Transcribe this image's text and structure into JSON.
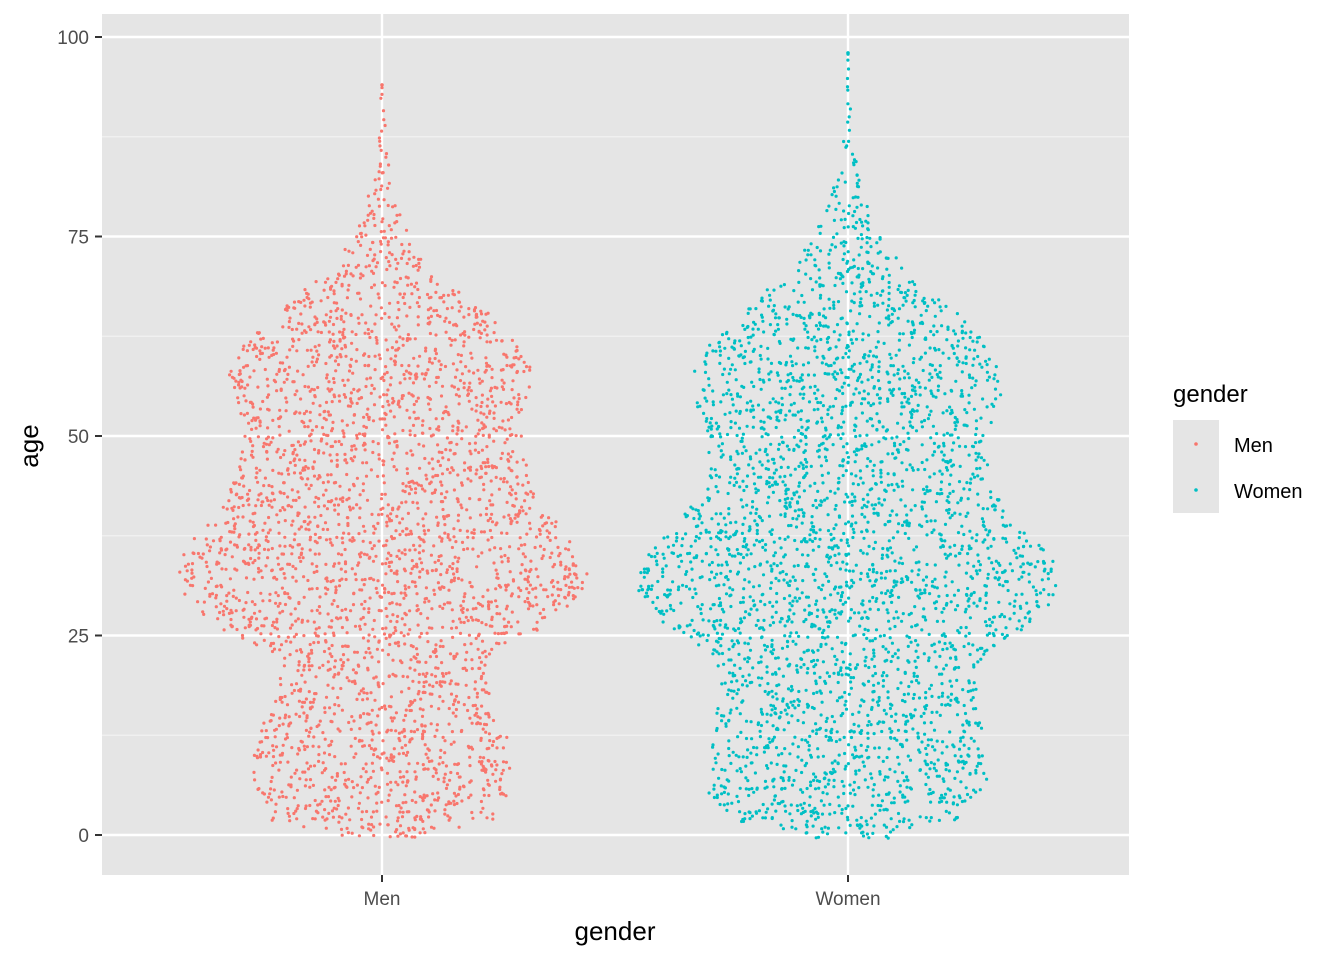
{
  "chart_data": {
    "type": "scatter",
    "subtype": "beeswarm",
    "title": "",
    "xlabel": "gender",
    "ylabel": "age",
    "categories": [
      "Men",
      "Women"
    ],
    "ylim": [
      -5,
      103
    ],
    "yticks": [
      0,
      25,
      50,
      75,
      100
    ],
    "ytick_labels": [
      "0",
      "25",
      "50",
      "75",
      "100"
    ],
    "grid": true,
    "background": "#e5e5e5",
    "legend": {
      "title": "gender",
      "position": "right",
      "entries": [
        {
          "label": "Men",
          "color": "#f8766d"
        },
        {
          "label": "Women",
          "color": "#00bfc4"
        }
      ]
    },
    "series": [
      {
        "name": "Men",
        "color": "#f8766d",
        "age_range": [
          0,
          94
        ],
        "half_width_by_age": [
          [
            0,
            0.11
          ],
          [
            2,
            0.24
          ],
          [
            5,
            0.27
          ],
          [
            8,
            0.28
          ],
          [
            12,
            0.27
          ],
          [
            16,
            0.24
          ],
          [
            20,
            0.22
          ],
          [
            23,
            0.25
          ],
          [
            26,
            0.34
          ],
          [
            30,
            0.43
          ],
          [
            33,
            0.44
          ],
          [
            36,
            0.42
          ],
          [
            40,
            0.36
          ],
          [
            44,
            0.32
          ],
          [
            48,
            0.3
          ],
          [
            52,
            0.3
          ],
          [
            55,
            0.32
          ],
          [
            58,
            0.33
          ],
          [
            61,
            0.3
          ],
          [
            65,
            0.24
          ],
          [
            70,
            0.12
          ],
          [
            75,
            0.06
          ],
          [
            80,
            0.03
          ],
          [
            85,
            0.015
          ],
          [
            90,
            0.005
          ],
          [
            94,
            0
          ]
        ]
      },
      {
        "name": "Women",
        "color": "#00bfc4",
        "age_range": [
          0,
          98
        ],
        "half_width_by_age": [
          [
            0,
            0.11
          ],
          [
            2,
            0.24
          ],
          [
            5,
            0.3
          ],
          [
            8,
            0.3
          ],
          [
            12,
            0.29
          ],
          [
            16,
            0.28
          ],
          [
            20,
            0.27
          ],
          [
            23,
            0.3
          ],
          [
            26,
            0.38
          ],
          [
            30,
            0.45
          ],
          [
            33,
            0.45
          ],
          [
            36,
            0.42
          ],
          [
            40,
            0.35
          ],
          [
            44,
            0.3
          ],
          [
            48,
            0.3
          ],
          [
            52,
            0.31
          ],
          [
            55,
            0.33
          ],
          [
            58,
            0.33
          ],
          [
            61,
            0.3
          ],
          [
            65,
            0.24
          ],
          [
            70,
            0.13
          ],
          [
            75,
            0.07
          ],
          [
            80,
            0.035
          ],
          [
            85,
            0.015
          ],
          [
            90,
            0.006
          ],
          [
            95,
            0.002
          ],
          [
            98,
            0
          ]
        ]
      }
    ]
  }
}
